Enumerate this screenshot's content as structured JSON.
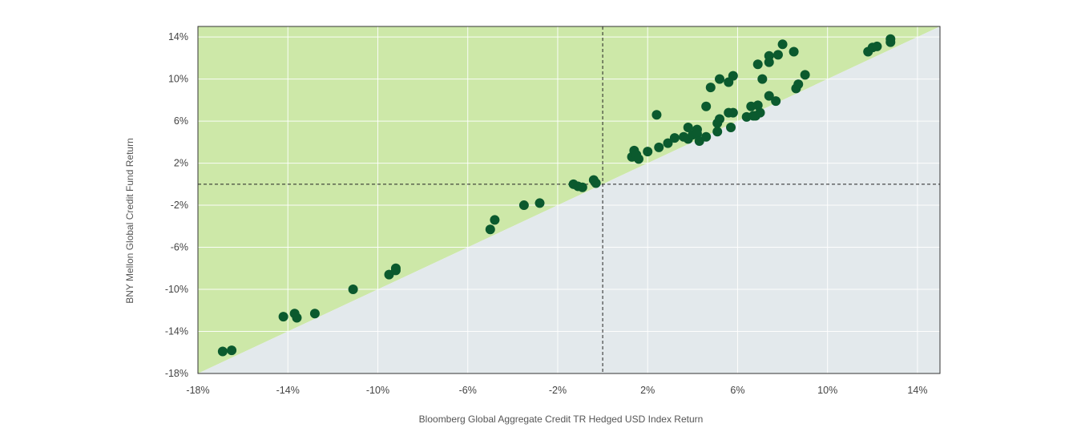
{
  "chart_data": {
    "type": "scatter",
    "title": "",
    "xlabel": "Bloomberg Global Aggregate Credit TR Hedged USD Index Return",
    "ylabel": "BNY Mellon Global Credit Fund Return",
    "xlim": [
      -18,
      15
    ],
    "ylim": [
      -18,
      15
    ],
    "x_ticks": [
      -18,
      -14,
      -10,
      -6,
      -2,
      2,
      6,
      10,
      14
    ],
    "y_ticks": [
      -18,
      -14,
      -10,
      -6,
      -2,
      2,
      6,
      10,
      14
    ],
    "x_tick_labels": [
      "-18%",
      "-14%",
      "-10%",
      "-6%",
      "-2%",
      "2%",
      "6%",
      "10%",
      "14%"
    ],
    "y_tick_labels": [
      "-18%",
      "-14%",
      "-10%",
      "-6%",
      "-2%",
      "2%",
      "6%",
      "10%",
      "14%"
    ],
    "grid": true,
    "reference_lines": {
      "x": 0,
      "y": 0,
      "style": "dashed"
    },
    "regions": [
      {
        "name": "above-diagonal",
        "color": "#cde8a8"
      },
      {
        "name": "below-diagonal",
        "color": "#e3e9ec"
      }
    ],
    "point_color": "#0b5a2e",
    "points": [
      {
        "x": -16.9,
        "y": -15.9
      },
      {
        "x": -16.5,
        "y": -15.8
      },
      {
        "x": -14.2,
        "y": -12.6
      },
      {
        "x": -13.7,
        "y": -12.3
      },
      {
        "x": -13.6,
        "y": -12.7
      },
      {
        "x": -12.8,
        "y": -12.3
      },
      {
        "x": -11.1,
        "y": -10.0
      },
      {
        "x": -9.5,
        "y": -8.6
      },
      {
        "x": -9.2,
        "y": -8.0
      },
      {
        "x": -9.2,
        "y": -8.2
      },
      {
        "x": -5.0,
        "y": -4.3
      },
      {
        "x": -4.8,
        "y": -3.4
      },
      {
        "x": -3.5,
        "y": -2.0
      },
      {
        "x": -2.8,
        "y": -1.8
      },
      {
        "x": -1.3,
        "y": 0.0
      },
      {
        "x": -1.1,
        "y": -0.2
      },
      {
        "x": -0.9,
        "y": -0.3
      },
      {
        "x": -0.4,
        "y": 0.4
      },
      {
        "x": -0.3,
        "y": 0.1
      },
      {
        "x": 1.3,
        "y": 2.6
      },
      {
        "x": 1.4,
        "y": 3.2
      },
      {
        "x": 1.5,
        "y": 2.8
      },
      {
        "x": 1.6,
        "y": 2.4
      },
      {
        "x": 2.0,
        "y": 3.1
      },
      {
        "x": 2.4,
        "y": 6.6
      },
      {
        "x": 2.5,
        "y": 3.5
      },
      {
        "x": 2.9,
        "y": 3.9
      },
      {
        "x": 3.2,
        "y": 4.4
      },
      {
        "x": 3.6,
        "y": 4.5
      },
      {
        "x": 3.8,
        "y": 5.4
      },
      {
        "x": 3.8,
        "y": 4.3
      },
      {
        "x": 4.0,
        "y": 4.7
      },
      {
        "x": 4.2,
        "y": 5.2
      },
      {
        "x": 4.2,
        "y": 4.8
      },
      {
        "x": 4.3,
        "y": 4.1
      },
      {
        "x": 4.6,
        "y": 7.4
      },
      {
        "x": 4.6,
        "y": 4.5
      },
      {
        "x": 4.8,
        "y": 9.2
      },
      {
        "x": 5.1,
        "y": 5.8
      },
      {
        "x": 5.1,
        "y": 5.0
      },
      {
        "x": 5.2,
        "y": 6.2
      },
      {
        "x": 5.2,
        "y": 10.0
      },
      {
        "x": 5.6,
        "y": 6.8
      },
      {
        "x": 5.6,
        "y": 9.7
      },
      {
        "x": 5.7,
        "y": 5.4
      },
      {
        "x": 5.8,
        "y": 6.8
      },
      {
        "x": 5.8,
        "y": 10.3
      },
      {
        "x": 6.4,
        "y": 6.4
      },
      {
        "x": 6.6,
        "y": 7.4
      },
      {
        "x": 6.7,
        "y": 6.5
      },
      {
        "x": 6.8,
        "y": 6.5
      },
      {
        "x": 6.9,
        "y": 11.4
      },
      {
        "x": 6.9,
        "y": 7.5
      },
      {
        "x": 7.0,
        "y": 6.8
      },
      {
        "x": 7.1,
        "y": 10.0
      },
      {
        "x": 7.4,
        "y": 11.6
      },
      {
        "x": 7.4,
        "y": 12.2
      },
      {
        "x": 7.4,
        "y": 8.4
      },
      {
        "x": 7.7,
        "y": 7.9
      },
      {
        "x": 7.8,
        "y": 12.3
      },
      {
        "x": 8.0,
        "y": 13.3
      },
      {
        "x": 8.5,
        "y": 12.6
      },
      {
        "x": 8.6,
        "y": 9.1
      },
      {
        "x": 8.7,
        "y": 9.5
      },
      {
        "x": 9.0,
        "y": 10.4
      },
      {
        "x": 11.8,
        "y": 12.6
      },
      {
        "x": 12.0,
        "y": 13.0
      },
      {
        "x": 12.2,
        "y": 13.1
      },
      {
        "x": 12.8,
        "y": 13.5
      },
      {
        "x": 12.8,
        "y": 13.8
      }
    ]
  }
}
